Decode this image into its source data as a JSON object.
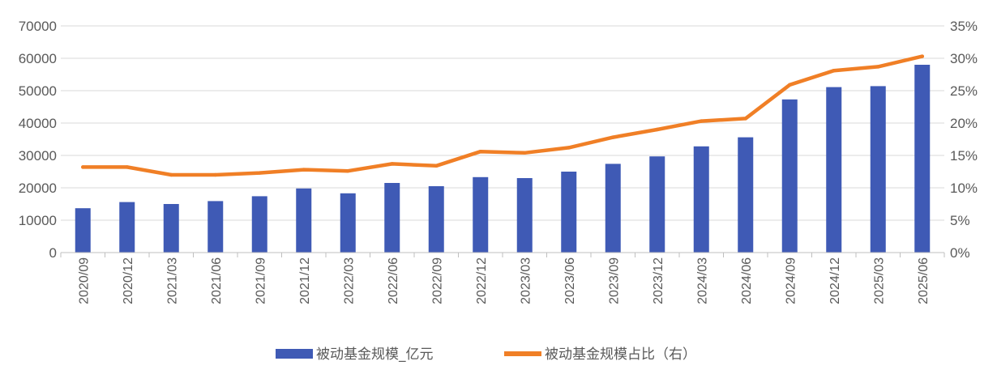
{
  "chart_data": {
    "type": "bar",
    "categories": [
      "2020/09",
      "2020/12",
      "2021/03",
      "2021/06",
      "2021/09",
      "2021/12",
      "2022/03",
      "2022/06",
      "2022/09",
      "2022/12",
      "2023/03",
      "2023/06",
      "2023/09",
      "2023/12",
      "2024/03",
      "2024/06",
      "2024/09",
      "2024/12",
      "2025/03",
      "2025/06"
    ],
    "series": [
      {
        "name": "被动基金规模_亿元",
        "type": "bar",
        "axis": "left",
        "color": "#3F5AB5",
        "values": [
          13700,
          15600,
          15000,
          15900,
          17400,
          19800,
          18300,
          21500,
          20500,
          23300,
          23000,
          25000,
          27400,
          29700,
          32800,
          35600,
          47300,
          51100,
          51400,
          58000
        ]
      },
      {
        "name": "被动基金规模占比（右）",
        "type": "line",
        "axis": "right",
        "color": "#F07F26",
        "values": [
          13.2,
          13.2,
          12.0,
          12.0,
          12.3,
          12.8,
          12.6,
          13.7,
          13.4,
          15.6,
          15.4,
          16.2,
          17.8,
          19.0,
          20.3,
          20.7,
          25.9,
          28.1,
          28.7,
          30.3
        ]
      }
    ],
    "y_left": {
      "ylim": [
        0,
        70000
      ],
      "ticks": [
        "0",
        "10000",
        "20000",
        "30000",
        "40000",
        "50000",
        "60000",
        "70000"
      ]
    },
    "y_right": {
      "ylim": [
        0,
        35
      ],
      "ticks": [
        "0%",
        "5%",
        "10%",
        "15%",
        "20%",
        "25%",
        "30%",
        "35%"
      ]
    },
    "grid": true,
    "legend": "bottom-center"
  }
}
